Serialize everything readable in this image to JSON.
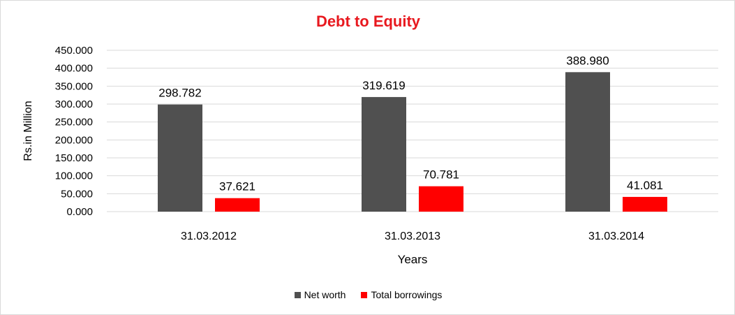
{
  "chart_data": {
    "type": "bar",
    "title": "Debt to Equity",
    "xlabel": "Years",
    "ylabel": "Rs.in Million",
    "categories": [
      "31.03.2012",
      "31.03.2013",
      "31.03.2014"
    ],
    "series": [
      {
        "name": "Net worth",
        "values": [
          298.782,
          319.619,
          388.98
        ],
        "labels": [
          "298.782",
          "319.619",
          "388.980"
        ],
        "color": "#505050"
      },
      {
        "name": "Total borrowings",
        "values": [
          37.621,
          70.781,
          41.081
        ],
        "labels": [
          "37.621",
          "70.781",
          "41.081"
        ],
        "color": "#ff0000"
      }
    ],
    "yticks": [
      "0.000",
      "50.000",
      "100.000",
      "150.000",
      "200.000",
      "250.000",
      "300.000",
      "350.000",
      "400.000",
      "450.000"
    ],
    "ylim": [
      0,
      450
    ],
    "grid": true,
    "legend_position": "bottom",
    "title_color": "#e8191f"
  }
}
